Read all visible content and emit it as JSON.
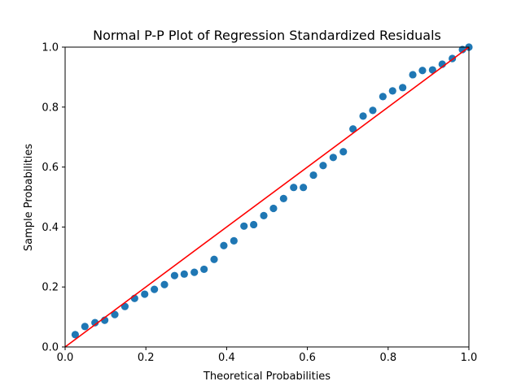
{
  "chart_data": {
    "type": "scatter",
    "title": "Normal P-P Plot of Regression Standardized Residuals",
    "xlabel": "Theoretical Probabilities",
    "ylabel": "Sample Probabilities",
    "xlim": [
      0,
      1
    ],
    "ylim": [
      0,
      1
    ],
    "grid": false,
    "xticks": [
      0.0,
      0.2,
      0.4,
      0.6,
      0.8,
      1.0
    ],
    "xtick_labels": [
      "0.0",
      "0.2",
      "0.4",
      "0.6",
      "0.8",
      "1.0"
    ],
    "yticks": [
      0.0,
      0.2,
      0.4,
      0.6,
      0.8,
      1.0
    ],
    "ytick_labels": [
      "0.0",
      "0.2",
      "0.4",
      "0.6",
      "0.8",
      "1.0"
    ],
    "points": {
      "color": "#1f77b4",
      "x": [
        0.025,
        0.049,
        0.074,
        0.098,
        0.123,
        0.148,
        0.172,
        0.197,
        0.221,
        0.246,
        0.271,
        0.295,
        0.32,
        0.344,
        0.369,
        0.393,
        0.418,
        0.443,
        0.467,
        0.492,
        0.516,
        0.541,
        0.566,
        0.59,
        0.615,
        0.639,
        0.664,
        0.689,
        0.713,
        0.738,
        0.762,
        0.787,
        0.811,
        0.836,
        0.861,
        0.885,
        0.91,
        0.934,
        0.959,
        0.984,
        1.0
      ],
      "y": [
        0.041,
        0.068,
        0.081,
        0.089,
        0.108,
        0.135,
        0.162,
        0.176,
        0.192,
        0.208,
        0.238,
        0.243,
        0.249,
        0.259,
        0.292,
        0.338,
        0.354,
        0.403,
        0.408,
        0.438,
        0.462,
        0.495,
        0.532,
        0.532,
        0.573,
        0.605,
        0.632,
        0.651,
        0.727,
        0.77,
        0.789,
        0.835,
        0.854,
        0.865,
        0.908,
        0.922,
        0.924,
        0.943,
        0.962,
        0.992,
        1.0
      ]
    },
    "reference_line": {
      "from": [
        0,
        0
      ],
      "to": [
        1,
        1
      ],
      "color": "#ff0000"
    }
  }
}
